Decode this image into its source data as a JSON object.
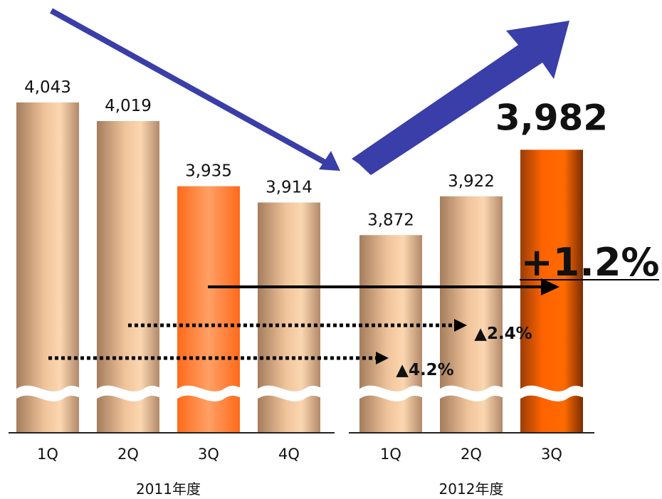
{
  "chart_data": {
    "type": "bar",
    "groups": [
      {
        "name": "2011年度",
        "categories": [
          "1Q",
          "2Q",
          "3Q",
          "4Q"
        ],
        "values": [
          4043,
          4019,
          3935,
          3914
        ],
        "labels": [
          "4,043",
          "4,019",
          "3,935",
          "3,914"
        ]
      },
      {
        "name": "2012年度",
        "categories": [
          "1Q",
          "2Q",
          "3Q"
        ],
        "values": [
          3872,
          3922,
          3982
        ],
        "labels": [
          "3,872",
          "3,922",
          "3,982"
        ]
      }
    ],
    "highlighted": {
      "2011年度": "3Q",
      "2012年度": "3Q"
    },
    "y_axis": {
      "visible": false,
      "broken": true,
      "ylim": [
        3700,
        4100
      ]
    },
    "annotations": {
      "growth_main": "+1.2%",
      "change_1q": "▲4.2%",
      "change_2q": "▲2.4%"
    },
    "colors": {
      "bar": "#e8b98e",
      "highlight_2011": "#ff7a2e",
      "highlight_2012": "#ff6200",
      "trend_arrow": "#3a3ea8"
    }
  }
}
